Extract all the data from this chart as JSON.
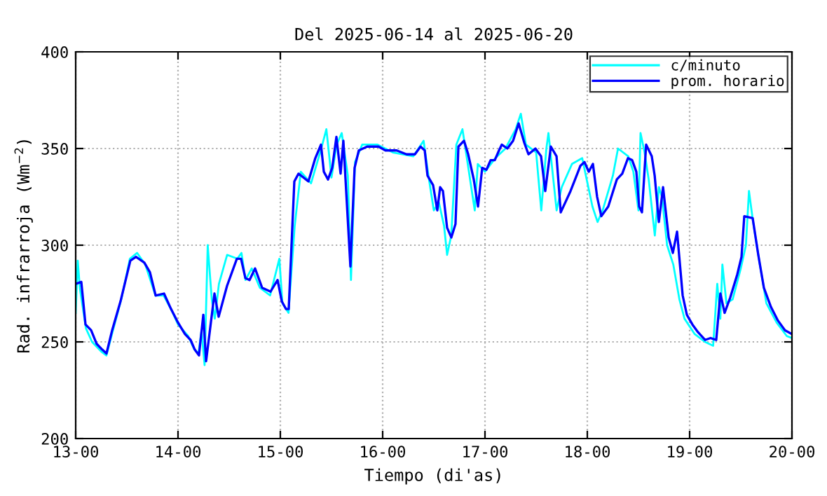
{
  "chart_data": {
    "type": "line",
    "title": "Del 2025-06-14 al 2025-06-20",
    "xlabel": "Tiempo (di'as)",
    "ylabel": "Rad. infrarroja (Wm$^{−2}$)",
    "xlim": [
      "2025-06-13T00:00",
      "2025-06-20T00:00"
    ],
    "ylim": [
      200,
      400
    ],
    "xticks": [
      {
        "value": "2025-06-13T00:00",
        "label": "13-00"
      },
      {
        "value": "2025-06-14T00:00",
        "label": "14-00"
      },
      {
        "value": "2025-06-15T00:00",
        "label": "15-00"
      },
      {
        "value": "2025-06-16T00:00",
        "label": "16-00"
      },
      {
        "value": "2025-06-17T00:00",
        "label": "17-00"
      },
      {
        "value": "2025-06-18T00:00",
        "label": "18-00"
      },
      {
        "value": "2025-06-19T00:00",
        "label": "19-00"
      },
      {
        "value": "2025-06-20T00:00",
        "label": "20-00"
      }
    ],
    "yticks": [
      200,
      250,
      300,
      350,
      400
    ],
    "grid": true,
    "legend": "top right",
    "marker": "none",
    "line_style": "solid",
    "series": [
      {
        "name": "c/minuto",
        "color": "#00ffff",
        "x": [
          "2025-06-13T00:00",
          "2025-06-13T00:29",
          "2025-06-13T00:58",
          "2025-06-13T02:24",
          "2025-06-13T03:50",
          "2025-06-13T06:00",
          "2025-06-13T07:12",
          "2025-06-13T08:38",
          "2025-06-13T10:48",
          "2025-06-13T12:43",
          "2025-06-13T14:24",
          "2025-06-13T16:19",
          "2025-06-13T18:43",
          "2025-06-13T20:38",
          "2025-06-13T22:34",
          "2025-06-14T00:00",
          "2025-06-14T02:24",
          "2025-06-14T03:50",
          "2025-06-14T04:48",
          "2025-06-14T05:31",
          "2025-06-14T06:14",
          "2025-06-14T06:58",
          "2025-06-14T07:55",
          "2025-06-14T08:38",
          "2025-06-14T09:36",
          "2025-06-14T11:31",
          "2025-06-14T13:55",
          "2025-06-14T14:53",
          "2025-06-14T15:50",
          "2025-06-14T17:17",
          "2025-06-14T19:12",
          "2025-06-14T21:36",
          "2025-06-14T23:46",
          "2025-06-15T00:29",
          "2025-06-15T01:55",
          "2025-06-15T03:22",
          "2025-06-15T04:48",
          "2025-06-15T07:12",
          "2025-06-15T09:36",
          "2025-06-15T10:48",
          "2025-06-15T12:00",
          "2025-06-15T13:12",
          "2025-06-15T14:24",
          "2025-06-15T15:50",
          "2025-06-15T16:34",
          "2025-06-15T17:31",
          "2025-06-15T19:12",
          "2025-06-15T22:48",
          "2025-06-16T02:24",
          "2025-06-16T07:12",
          "2025-06-16T09:36",
          "2025-06-16T10:48",
          "2025-06-16T12:00",
          "2025-06-16T13:12",
          "2025-06-16T14:24",
          "2025-06-16T15:07",
          "2025-06-16T16:05",
          "2025-06-16T17:17",
          "2025-06-16T18:43",
          "2025-06-16T19:41",
          "2025-06-16T21:36",
          "2025-06-16T22:19",
          "2025-06-17T00:00",
          "2025-06-17T02:24",
          "2025-06-17T04:48",
          "2025-06-17T07:12",
          "2025-06-17T08:24",
          "2025-06-17T09:36",
          "2025-06-17T12:00",
          "2025-06-17T13:12",
          "2025-06-17T14:24",
          "2025-06-17T14:53",
          "2025-06-17T16:48",
          "2025-06-17T18:00",
          "2025-06-17T20:24",
          "2025-06-17T22:48",
          "2025-06-18T01:12",
          "2025-06-18T02:24",
          "2025-06-18T03:36",
          "2025-06-18T06:00",
          "2025-06-18T07:12",
          "2025-06-18T09:36",
          "2025-06-18T10:48",
          "2025-06-18T12:00",
          "2025-06-18T12:29",
          "2025-06-18T13:26",
          "2025-06-18T14:24",
          "2025-06-18T15:50",
          "2025-06-18T16:48",
          "2025-06-18T17:31",
          "2025-06-18T18:43",
          "2025-06-18T20:10",
          "2025-06-18T21:36",
          "2025-06-18T22:48",
          "2025-06-19T01:12",
          "2025-06-19T03:36",
          "2025-06-19T05:31",
          "2025-06-19T06:29",
          "2025-06-19T07:12",
          "2025-06-19T07:41",
          "2025-06-19T08:38",
          "2025-06-19T10:05",
          "2025-06-19T12:00",
          "2025-06-19T13:12",
          "2025-06-19T13:55",
          "2025-06-19T14:53",
          "2025-06-19T16:19",
          "2025-06-19T18:00",
          "2025-06-19T20:24",
          "2025-06-19T22:48",
          "2025-06-20T00:00"
        ],
        "values": [
          265,
          292,
          278,
          257,
          250,
          245,
          243,
          255,
          273,
          293,
          296,
          290,
          274,
          274,
          266,
          259,
          253,
          246,
          244,
          256,
          238,
          300,
          272,
          262,
          280,
          295,
          293,
          296,
          282,
          288,
          278,
          274,
          293,
          270,
          265,
          310,
          338,
          332,
          350,
          360,
          335,
          352,
          358,
          336,
          282,
          343,
          352,
          352,
          348,
          346,
          354,
          335,
          318,
          322,
          310,
          295,
          305,
          352,
          360,
          346,
          318,
          342,
          338,
          345,
          350,
          360,
          368,
          352,
          348,
          318,
          350,
          358,
          318,
          330,
          342,
          345,
          320,
          312,
          318,
          336,
          350,
          346,
          338,
          318,
          358,
          348,
          334,
          305,
          330,
          325,
          300,
          290,
          272,
          262,
          254,
          250,
          248,
          280,
          262,
          290,
          270,
          272,
          288,
          300,
          328,
          312,
          292,
          270,
          260,
          253,
          252
        ]
      },
      {
        "name": "prom. horario",
        "color": "#0000ff",
        "x": [
          "2025-06-13T00:00",
          "2025-06-13T01:19",
          "2025-06-13T02:18",
          "2025-06-13T03:37",
          "2025-06-13T04:55",
          "2025-06-13T06:14",
          "2025-06-13T07:13",
          "2025-06-13T08:33",
          "2025-06-13T10:31",
          "2025-06-13T12:49",
          "2025-06-13T14:08",
          "2025-06-13T16:06",
          "2025-06-13T17:25",
          "2025-06-13T18:45",
          "2025-06-13T20:43",
          "2025-06-13T22:22",
          "2025-06-14T00:00",
          "2025-06-14T01:38",
          "2025-06-14T02:57",
          "2025-06-14T03:56",
          "2025-06-14T04:55",
          "2025-06-14T05:56",
          "2025-06-14T06:35",
          "2025-06-14T08:33",
          "2025-06-14T09:32",
          "2025-06-14T11:30",
          "2025-06-14T13:48",
          "2025-06-14T14:47",
          "2025-06-14T15:48",
          "2025-06-14T16:47",
          "2025-06-14T18:04",
          "2025-06-14T19:44",
          "2025-06-14T21:42",
          "2025-06-14T23:21",
          "2025-06-15T00:20",
          "2025-06-15T01:19",
          "2025-06-15T01:58",
          "2025-06-15T03:17",
          "2025-06-15T04:16",
          "2025-06-15T06:35",
          "2025-06-15T08:12",
          "2025-06-15T09:32",
          "2025-06-15T10:12",
          "2025-06-15T11:11",
          "2025-06-15T12:10",
          "2025-06-15T13:09",
          "2025-06-15T14:08",
          "2025-06-15T14:47",
          "2025-06-15T16:26",
          "2025-06-15T17:25",
          "2025-06-15T18:24",
          "2025-06-15T20:22",
          "2025-06-15T23:01",
          "2025-06-16T00:39",
          "2025-06-16T03:17",
          "2025-06-16T05:36",
          "2025-06-16T07:34",
          "2025-06-16T08:53",
          "2025-06-16T09:52",
          "2025-06-16T10:31",
          "2025-06-16T11:50",
          "2025-06-16T12:49",
          "2025-06-16T13:29",
          "2025-06-16T14:08",
          "2025-06-16T15:07",
          "2025-06-16T16:06",
          "2025-06-16T17:05",
          "2025-06-16T17:46",
          "2025-06-16T19:05",
          "2025-06-16T20:04",
          "2025-06-16T21:22",
          "2025-06-16T22:22",
          "2025-06-16T23:21",
          "2025-06-17T00:20",
          "2025-06-17T01:19",
          "2025-06-17T02:18",
          "2025-06-17T03:17",
          "2025-06-17T03:56",
          "2025-06-17T05:15",
          "2025-06-17T06:35",
          "2025-06-17T07:54",
          "2025-06-17T09:13",
          "2025-06-17T10:12",
          "2025-06-17T11:50",
          "2025-06-17T13:09",
          "2025-06-17T14:08",
          "2025-06-17T15:27",
          "2025-06-17T16:47",
          "2025-06-17T17:46",
          "2025-06-17T20:04",
          "2025-06-17T22:22",
          "2025-06-17T23:21",
          "2025-06-18T00:20",
          "2025-06-18T01:19",
          "2025-06-18T02:18",
          "2025-06-18T03:17",
          "2025-06-18T04:55",
          "2025-06-18T06:55",
          "2025-06-18T08:12",
          "2025-06-18T09:32",
          "2025-06-18T10:31",
          "2025-06-18T11:30",
          "2025-06-18T12:10",
          "2025-06-18T12:49",
          "2025-06-18T13:48",
          "2025-06-18T15:07",
          "2025-06-18T15:48",
          "2025-06-18T16:47",
          "2025-06-18T17:46",
          "2025-06-18T19:05",
          "2025-06-18T20:04",
          "2025-06-18T21:03",
          "2025-06-18T22:22",
          "2025-06-18T23:21",
          "2025-06-19T00:39",
          "2025-06-19T01:58",
          "2025-06-19T03:37",
          "2025-06-19T04:55",
          "2025-06-19T06:14",
          "2025-06-19T07:13",
          "2025-06-19T08:12",
          "2025-06-19T09:32",
          "2025-06-19T11:11",
          "2025-06-19T12:10",
          "2025-06-19T12:49",
          "2025-06-19T14:47",
          "2025-06-19T16:06",
          "2025-06-19T17:25",
          "2025-06-19T19:05",
          "2025-06-19T20:43",
          "2025-06-19T22:22",
          "2025-06-20T00:00"
        ],
        "values": [
          280,
          281,
          259,
          256,
          249,
          246,
          244,
          256,
          271,
          292,
          294,
          291,
          286,
          274,
          275,
          267,
          260,
          254,
          251,
          246,
          243,
          264,
          240,
          275,
          263,
          279,
          293,
          293,
          283,
          282,
          288,
          278,
          276,
          282,
          271,
          267,
          267,
          333,
          337,
          333,
          345,
          352,
          338,
          334,
          340,
          356,
          337,
          354,
          289,
          340,
          349,
          351,
          351,
          349,
          349,
          347,
          347,
          351,
          349,
          336,
          331,
          318,
          330,
          328,
          309,
          304,
          311,
          351,
          354,
          347,
          334,
          320,
          340,
          339,
          344,
          344,
          349,
          352,
          350,
          354,
          363,
          353,
          347,
          350,
          346,
          328,
          351,
          346,
          317,
          328,
          341,
          343,
          338,
          342,
          325,
          315,
          320,
          334,
          337,
          345,
          344,
          338,
          320,
          317,
          352,
          346,
          336,
          312,
          330,
          304,
          296,
          307,
          274,
          264,
          259,
          255,
          251,
          252,
          251,
          275,
          265,
          273,
          285,
          294,
          315,
          314,
          295,
          278,
          268,
          261,
          256,
          254
        ]
      }
    ]
  }
}
